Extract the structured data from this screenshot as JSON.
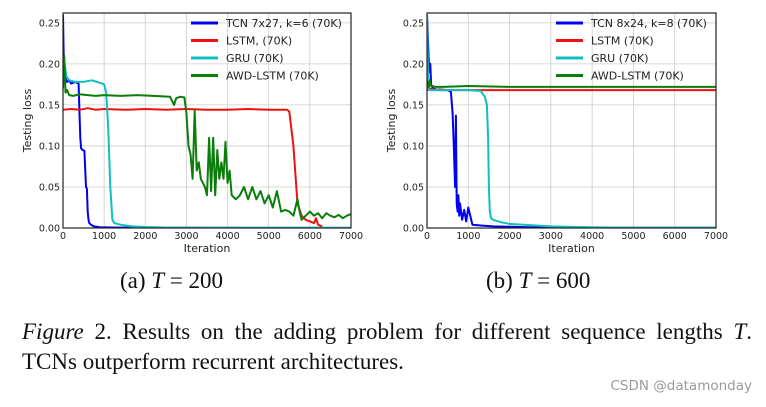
{
  "chart_data": [
    {
      "type": "line",
      "id": "a",
      "title": "",
      "xlabel": "Iteration",
      "ylabel": "Testing loss",
      "xlim": [
        0,
        7000
      ],
      "ylim": [
        0,
        0.262
      ],
      "xticks": [
        0,
        1000,
        2000,
        3000,
        4000,
        5000,
        6000,
        7000
      ],
      "yticks": [
        0.0,
        0.05,
        0.1,
        0.15,
        0.2,
        0.25
      ],
      "xtick_labels": [
        "0",
        "1000",
        "2000",
        "3000",
        "4000",
        "5000",
        "6000",
        "7000"
      ],
      "ytick_labels": [
        "0.00",
        "0.05",
        "0.10",
        "0.15",
        "0.20",
        "0.25"
      ],
      "grid": true,
      "legend_position": "top-right",
      "series": [
        {
          "name": "TCN 7x27, k=6 (70K)",
          "color": "#0000ee",
          "x": [
            0,
            20,
            60,
            100,
            150,
            200,
            300,
            380,
            400,
            420,
            440,
            480,
            520,
            560,
            580,
            600,
            620,
            640,
            680,
            750,
            900,
            1200,
            2000,
            3000,
            5000,
            7000
          ],
          "y": [
            0.26,
            0.2,
            0.182,
            0.178,
            0.18,
            0.176,
            0.178,
            0.176,
            0.14,
            0.11,
            0.097,
            0.095,
            0.094,
            0.05,
            0.048,
            0.02,
            0.01,
            0.006,
            0.004,
            0.002,
            0.001,
            0.0006,
            0.0003,
            0.0002,
            0.0001,
            0.0001
          ]
        },
        {
          "name": "LSTM, (70K)",
          "color": "#ee1111",
          "x": [
            0,
            200,
            400,
            600,
            800,
            1000,
            1500,
            2000,
            2500,
            3000,
            3500,
            4000,
            4500,
            5000,
            5450,
            5500,
            5600,
            5700,
            5800,
            5900,
            6000,
            6100,
            6150,
            6200,
            6300
          ],
          "y": [
            0.144,
            0.145,
            0.144,
            0.146,
            0.144,
            0.145,
            0.144,
            0.145,
            0.144,
            0.145,
            0.144,
            0.144,
            0.145,
            0.144,
            0.144,
            0.142,
            0.1,
            0.03,
            0.015,
            0.01,
            0.008,
            0.006,
            0.012,
            0.004,
            0.002
          ]
        },
        {
          "name": "GRU (70K)",
          "color": "#11bfbf",
          "x": [
            0,
            30,
            80,
            150,
            300,
            500,
            700,
            900,
            1000,
            1050,
            1100,
            1150,
            1200,
            1250,
            1400,
            1700,
            2000,
            2500,
            3000,
            5000,
            7000
          ],
          "y": [
            0.2,
            0.205,
            0.185,
            0.18,
            0.178,
            0.178,
            0.18,
            0.177,
            0.175,
            0.165,
            0.12,
            0.05,
            0.01,
            0.006,
            0.004,
            0.002,
            0.0012,
            0.0006,
            0.0003,
            0.0002,
            0.0001
          ]
        },
        {
          "name": "AWD-LSTM (70K)",
          "color": "#0a7d0a",
          "x": [
            0,
            30,
            60,
            100,
            150,
            250,
            400,
            600,
            800,
            1000,
            1400,
            1800,
            2200,
            2600,
            2700,
            2750,
            2850,
            2950,
            3000,
            3050,
            3100,
            3150,
            3200,
            3250,
            3300,
            3350,
            3400,
            3450,
            3500,
            3550,
            3600,
            3650,
            3700,
            3750,
            3800,
            3850,
            3900,
            3950,
            4000,
            4050,
            4100,
            4200,
            4300,
            4400,
            4500,
            4600,
            4700,
            4800,
            4900,
            5000,
            5100,
            5200,
            5300,
            5400,
            5500,
            5600,
            5700,
            5750,
            5800,
            5900,
            6000,
            6100,
            6200,
            6300,
            6400,
            6500,
            6600,
            6700,
            6800,
            6900,
            7000
          ],
          "y": [
            0.17,
            0.21,
            0.165,
            0.168,
            0.162,
            0.161,
            0.163,
            0.162,
            0.161,
            0.162,
            0.161,
            0.162,
            0.161,
            0.16,
            0.15,
            0.158,
            0.16,
            0.159,
            0.14,
            0.1,
            0.09,
            0.06,
            0.143,
            0.07,
            0.08,
            0.06,
            0.055,
            0.05,
            0.04,
            0.11,
            0.045,
            0.11,
            0.04,
            0.095,
            0.06,
            0.08,
            0.06,
            0.105,
            0.055,
            0.07,
            0.04,
            0.035,
            0.04,
            0.05,
            0.035,
            0.05,
            0.035,
            0.045,
            0.03,
            0.04,
            0.025,
            0.045,
            0.02,
            0.022,
            0.02,
            0.015,
            0.035,
            0.02,
            0.01,
            0.015,
            0.02,
            0.015,
            0.018,
            0.012,
            0.018,
            0.015,
            0.013,
            0.016,
            0.012,
            0.015,
            0.017
          ]
        }
      ]
    },
    {
      "type": "line",
      "id": "b",
      "title": "",
      "xlabel": "Iteration",
      "ylabel": "Testing loss",
      "xlim": [
        0,
        7000
      ],
      "ylim": [
        0,
        0.262
      ],
      "xticks": [
        0,
        1000,
        2000,
        3000,
        4000,
        5000,
        6000,
        7000
      ],
      "yticks": [
        0.0,
        0.05,
        0.1,
        0.15,
        0.2,
        0.25
      ],
      "xtick_labels": [
        "0",
        "1000",
        "2000",
        "3000",
        "4000",
        "5000",
        "6000",
        "7000"
      ],
      "ytick_labels": [
        "0.00",
        "0.05",
        "0.10",
        "0.15",
        "0.20",
        "0.25"
      ],
      "grid": true,
      "legend_position": "top-right",
      "series": [
        {
          "name": "TCN 8x24, k=8 (70K)",
          "color": "#0000ee",
          "x": [
            0,
            40,
            60,
            80,
            100,
            150,
            200,
            300,
            500,
            580,
            620,
            650,
            680,
            700,
            720,
            740,
            760,
            780,
            800,
            850,
            900,
            950,
            1000,
            1100,
            1300,
            1600,
            2000,
            2500,
            3000,
            4000,
            7000
          ],
          "y": [
            0.26,
            0.205,
            0.19,
            0.2,
            0.175,
            0.17,
            0.169,
            0.168,
            0.168,
            0.166,
            0.14,
            0.1,
            0.05,
            0.137,
            0.03,
            0.02,
            0.04,
            0.015,
            0.03,
            0.01,
            0.022,
            0.008,
            0.025,
            0.004,
            0.003,
            0.002,
            0.0015,
            0.001,
            0.0005,
            0.0003,
            0.0002
          ]
        },
        {
          "name": "LSTM (70K)",
          "color": "#ee1111",
          "x": [
            0,
            100,
            200,
            300,
            500,
            1000,
            2000,
            3000,
            4000,
            5000,
            6000,
            7000
          ],
          "y": [
            0.168,
            0.17,
            0.168,
            0.169,
            0.168,
            0.168,
            0.168,
            0.168,
            0.168,
            0.168,
            0.168,
            0.168
          ]
        },
        {
          "name": "GRU (70K)",
          "color": "#11bfbf",
          "x": [
            0,
            20,
            40,
            60,
            200,
            600,
            1000,
            1300,
            1400,
            1450,
            1480,
            1500,
            1520,
            1550,
            1600,
            1800,
            2000,
            2500,
            3000,
            3500,
            4000,
            5000,
            7000
          ],
          "y": [
            0.26,
            0.2,
            0.17,
            0.168,
            0.168,
            0.168,
            0.168,
            0.167,
            0.16,
            0.15,
            0.11,
            0.05,
            0.02,
            0.012,
            0.01,
            0.007,
            0.005,
            0.0035,
            0.002,
            0.0013,
            0.0008,
            0.0004,
            0.0002
          ]
        },
        {
          "name": "AWD-LSTM (70K)",
          "color": "#0a7d0a",
          "x": [
            0,
            30,
            50,
            70,
            90,
            120,
            200,
            400,
            1000,
            2000,
            3000,
            4000,
            5000,
            6000,
            7000
          ],
          "y": [
            0.17,
            0.178,
            0.172,
            0.18,
            0.174,
            0.173,
            0.172,
            0.172,
            0.173,
            0.172,
            0.172,
            0.172,
            0.172,
            0.172,
            0.172
          ]
        }
      ]
    }
  ],
  "subcaptions": {
    "a": {
      "prefix": "(a) ",
      "var": "T",
      "rest": " = 200"
    },
    "b": {
      "prefix": "(b) ",
      "var": "T",
      "rest": " = 600"
    }
  },
  "caption": {
    "label": "Figure",
    "label_num": " 2.",
    "text1": " Results on the adding problem for different sequence lengths ",
    "var": "T",
    "text2": ".  TCNs outperform recurrent architectures."
  },
  "watermark": "CSDN @datamonday"
}
